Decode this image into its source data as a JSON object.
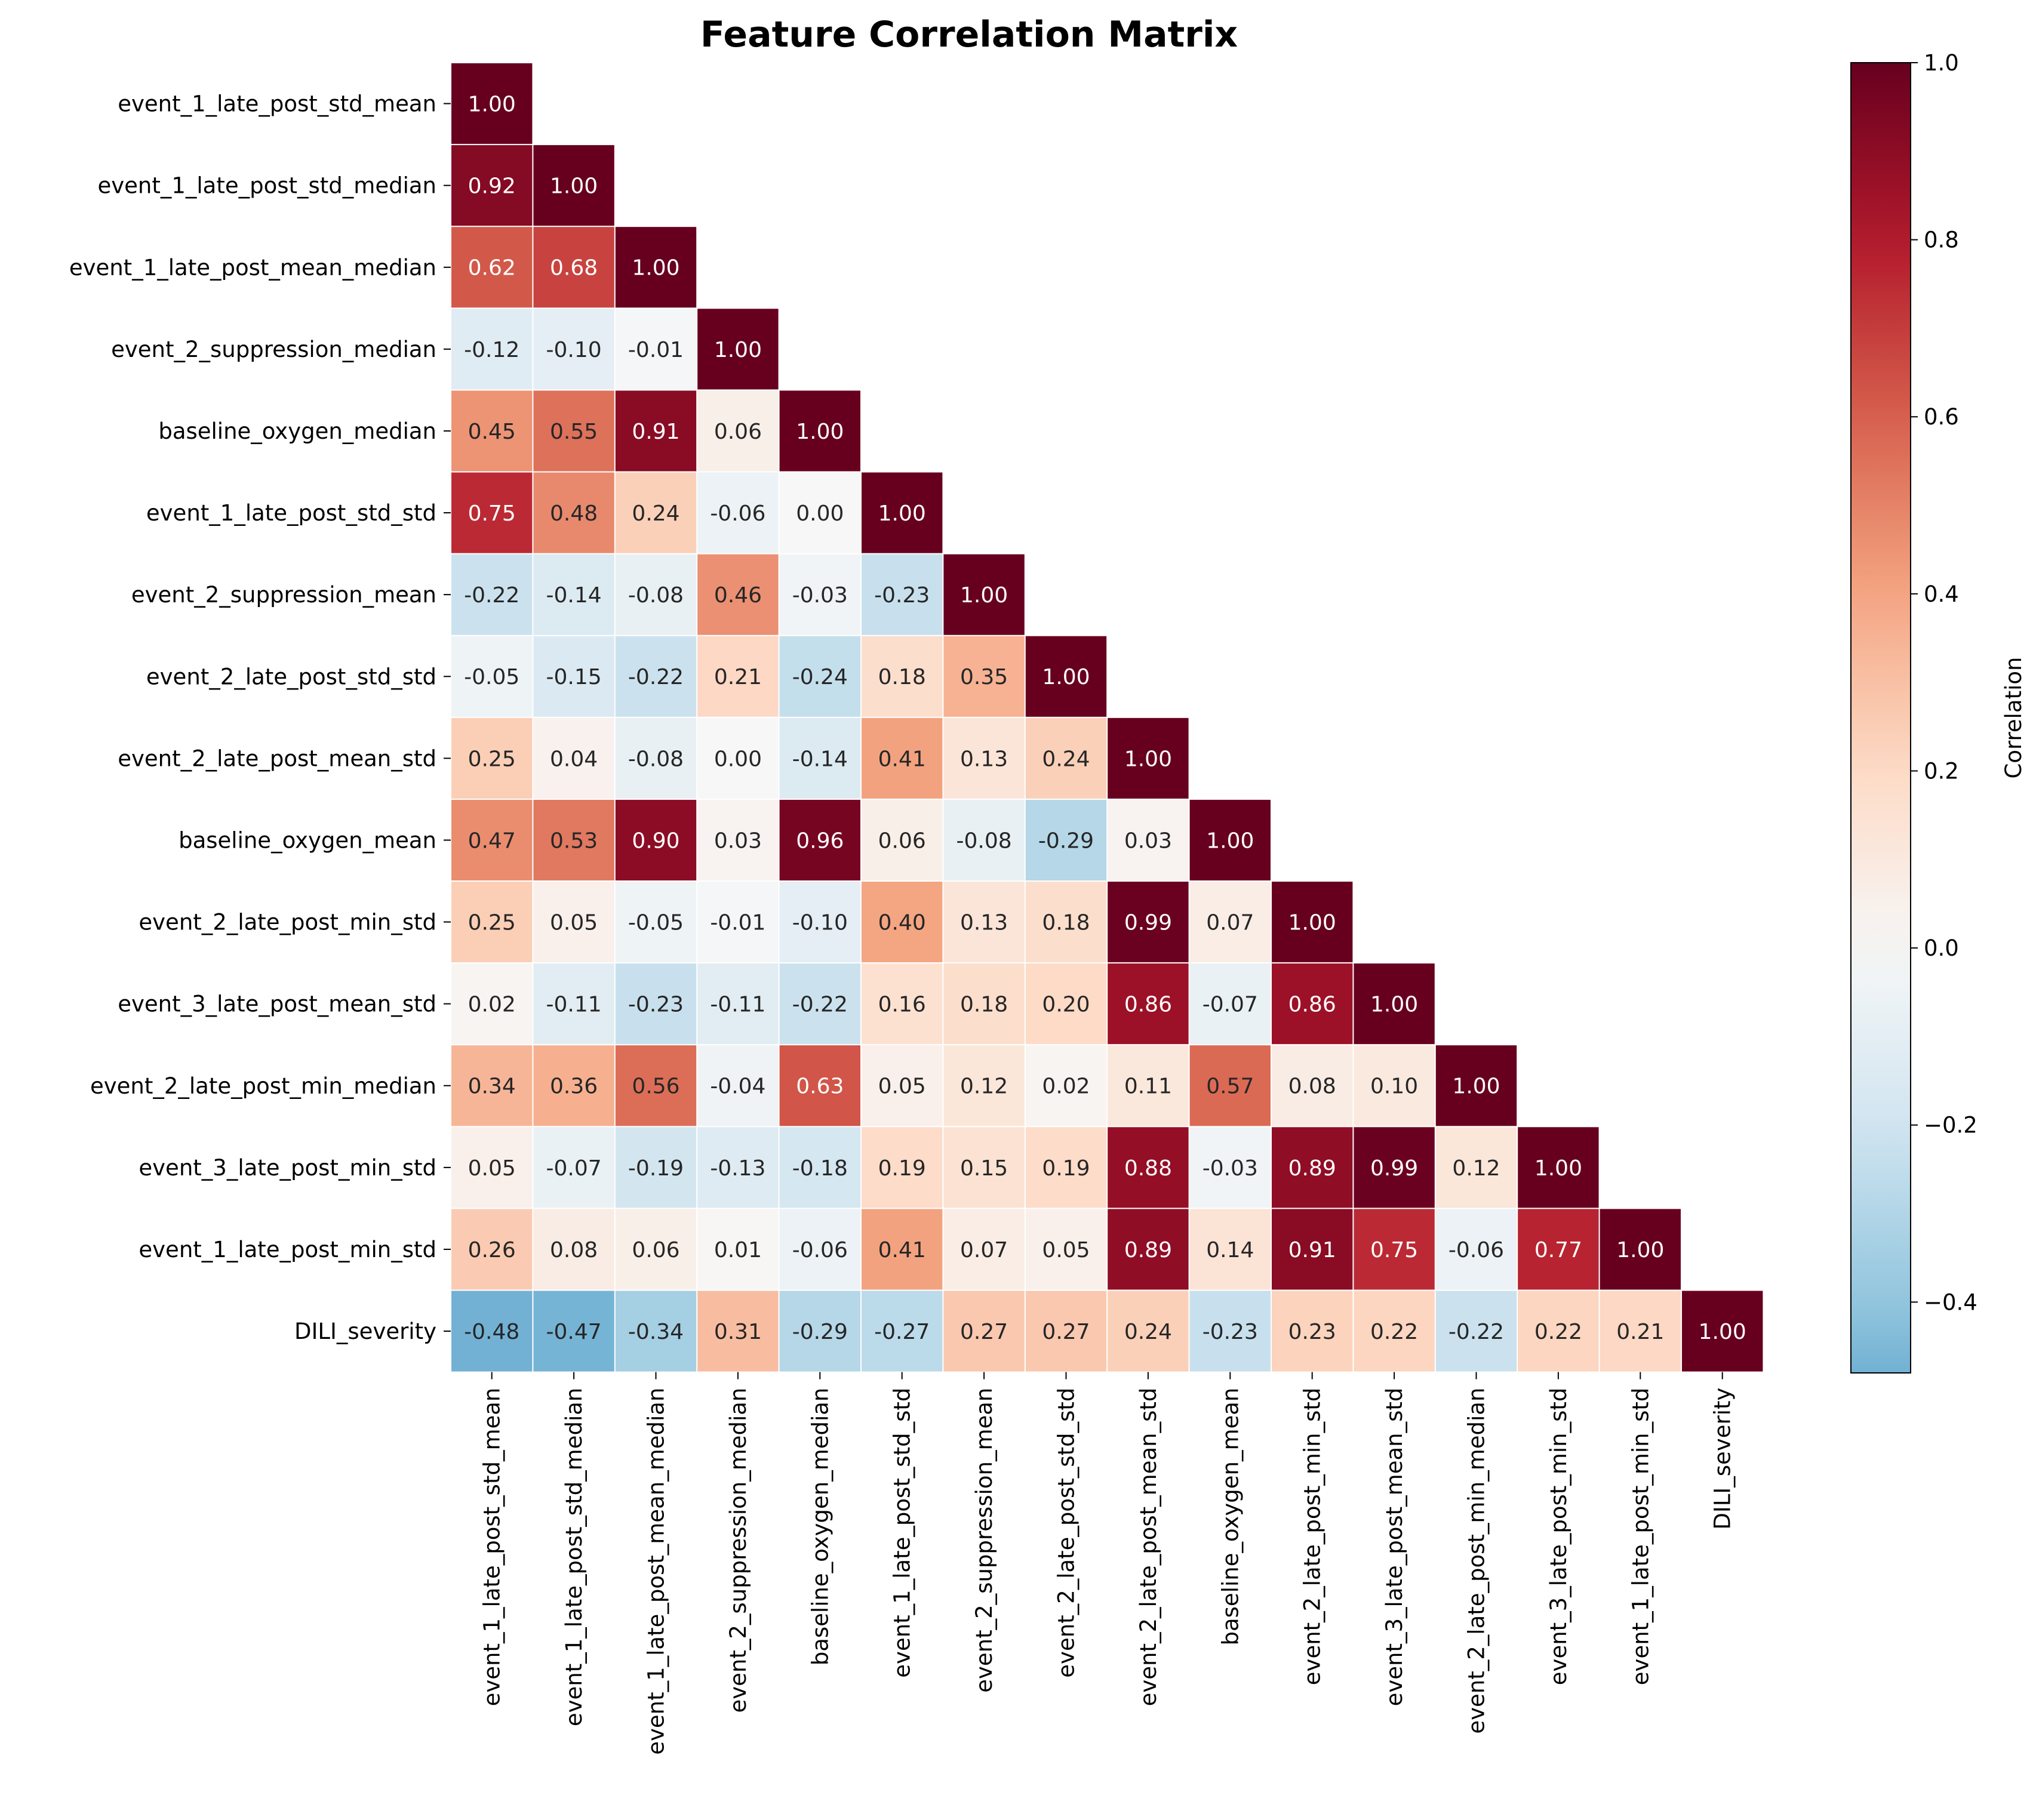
{
  "chart_data": {
    "type": "heatmap",
    "title": "Feature Correlation Matrix",
    "mask": "upper-triangle",
    "labels": [
      "event_1_late_post_std_mean",
      "event_1_late_post_std_median",
      "event_1_late_post_mean_median",
      "event_2_suppression_median",
      "baseline_oxygen_median",
      "event_1_late_post_std_std",
      "event_2_suppression_mean",
      "event_2_late_post_std_std",
      "event_2_late_post_mean_std",
      "baseline_oxygen_mean",
      "event_2_late_post_min_std",
      "event_3_late_post_mean_std",
      "event_2_late_post_min_median",
      "event_3_late_post_min_std",
      "event_1_late_post_min_std",
      "DILI_severity"
    ],
    "values": [
      [
        1.0
      ],
      [
        0.92,
        1.0
      ],
      [
        0.62,
        0.68,
        1.0
      ],
      [
        -0.12,
        -0.1,
        -0.01,
        1.0
      ],
      [
        0.45,
        0.55,
        0.91,
        0.06,
        1.0
      ],
      [
        0.75,
        0.48,
        0.24,
        -0.06,
        0.0,
        1.0
      ],
      [
        -0.22,
        -0.14,
        -0.08,
        0.46,
        -0.03,
        -0.23,
        1.0
      ],
      [
        -0.05,
        -0.15,
        -0.22,
        0.21,
        -0.24,
        0.18,
        0.35,
        1.0
      ],
      [
        0.25,
        0.04,
        -0.08,
        0.0,
        -0.14,
        0.41,
        0.13,
        0.24,
        1.0
      ],
      [
        0.47,
        0.53,
        0.9,
        0.03,
        0.96,
        0.06,
        -0.08,
        -0.29,
        0.03,
        1.0
      ],
      [
        0.25,
        0.05,
        -0.05,
        -0.01,
        -0.1,
        0.4,
        0.13,
        0.18,
        0.99,
        0.07,
        1.0
      ],
      [
        0.02,
        -0.11,
        -0.23,
        -0.11,
        -0.22,
        0.16,
        0.18,
        0.2,
        0.86,
        -0.07,
        0.86,
        1.0
      ],
      [
        0.34,
        0.36,
        0.56,
        -0.04,
        0.63,
        0.05,
        0.12,
        0.02,
        0.11,
        0.57,
        0.08,
        0.1,
        1.0
      ],
      [
        0.05,
        -0.07,
        -0.19,
        -0.13,
        -0.18,
        0.19,
        0.15,
        0.19,
        0.88,
        -0.03,
        0.89,
        0.99,
        0.12,
        1.0
      ],
      [
        0.26,
        0.08,
        0.06,
        0.01,
        -0.06,
        0.41,
        0.07,
        0.05,
        0.89,
        0.14,
        0.91,
        0.75,
        -0.06,
        0.77,
        1.0
      ],
      [
        -0.48,
        -0.47,
        -0.34,
        0.31,
        -0.29,
        -0.27,
        0.27,
        0.27,
        0.24,
        -0.23,
        0.23,
        0.22,
        -0.22,
        0.22,
        0.21,
        1.0
      ]
    ],
    "colorbar": {
      "label": "Correlation",
      "colormap": "RdBu_r",
      "range": [
        -0.48,
        1.0
      ],
      "ticks": [
        1.0,
        0.8,
        0.6,
        0.4,
        0.2,
        0.0,
        -0.2,
        -0.4
      ],
      "tick_labels": [
        "1.0",
        "0.8",
        "0.6",
        "0.4",
        "0.2",
        "0.0",
        "−0.2",
        "−0.4"
      ]
    },
    "value_format": "2 decimals"
  }
}
